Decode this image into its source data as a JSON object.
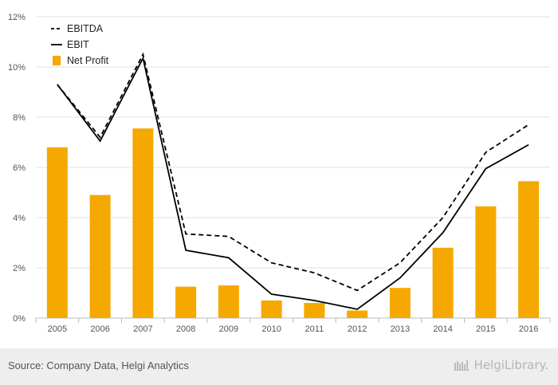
{
  "chart_data": {
    "type": "bar",
    "categories": [
      "2005",
      "2006",
      "2007",
      "2008",
      "2009",
      "2010",
      "2011",
      "2012",
      "2013",
      "2014",
      "2015",
      "2016"
    ],
    "series": [
      {
        "name": "EBITDA",
        "kind": "line",
        "style": "dashed",
        "color": "#000000",
        "values": [
          9.3,
          7.2,
          10.5,
          3.35,
          3.25,
          2.2,
          1.8,
          1.1,
          2.2,
          4.0,
          6.6,
          7.7
        ]
      },
      {
        "name": "EBIT",
        "kind": "line",
        "style": "solid",
        "color": "#000000",
        "values": [
          9.3,
          7.05,
          10.35,
          2.7,
          2.4,
          0.95,
          0.7,
          0.35,
          1.6,
          3.4,
          5.95,
          6.9
        ]
      },
      {
        "name": "Net Profit",
        "kind": "bar",
        "color": "#f5a800",
        "values": [
          6.8,
          4.9,
          7.55,
          1.25,
          1.3,
          0.7,
          0.6,
          0.3,
          1.2,
          2.8,
          4.45,
          5.45
        ]
      }
    ],
    "yticks": [
      "0%",
      "2%",
      "4%",
      "6%",
      "8%",
      "10%",
      "12%"
    ],
    "ylim": [
      0,
      12
    ],
    "grid": true,
    "legend_position": "top-left"
  },
  "footer": {
    "source": "Source: Company Data, Helgi Analytics",
    "brand": "HelgiLibrary."
  }
}
